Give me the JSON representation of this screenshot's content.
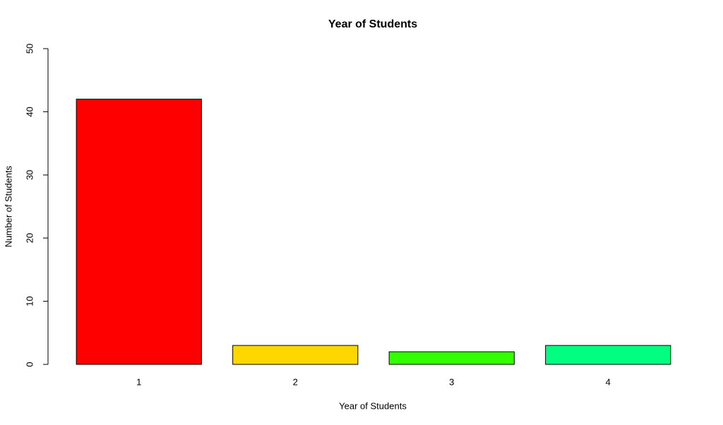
{
  "chart_data": {
    "type": "bar",
    "title": "Year of Students",
    "x_label": "Year of Students",
    "y_label": "Number of Students",
    "categories": [
      "1",
      "2",
      "3",
      "4"
    ],
    "values": [
      42,
      3,
      2,
      3
    ],
    "colors": [
      "#ff0000",
      "#ffd700",
      "#33ff00",
      "#00ff80"
    ],
    "ylim": [
      0,
      50
    ],
    "yticks": [
      0,
      10,
      20,
      30,
      40,
      50
    ]
  }
}
